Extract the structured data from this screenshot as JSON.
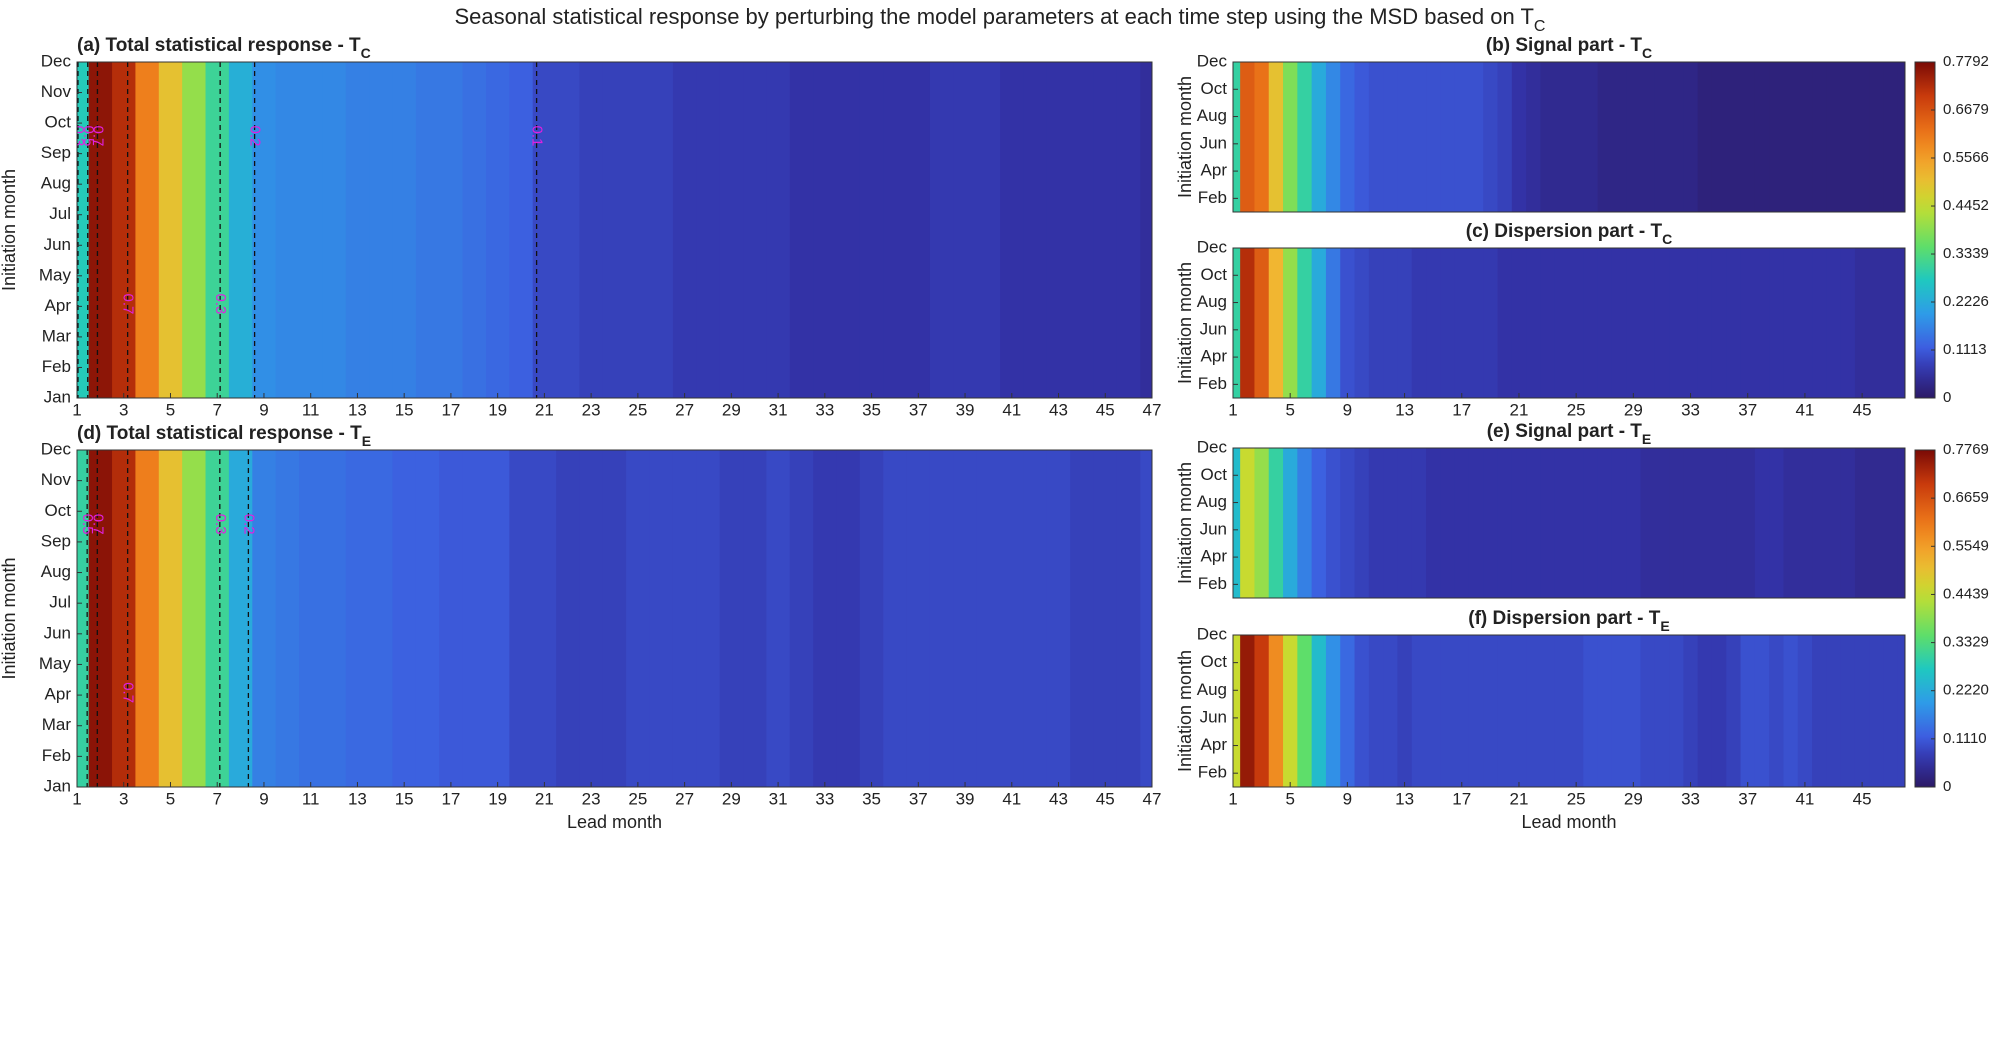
{
  "title": "Seasonal statistical response by perturbing the model parameters at each time step using the MSD based on T",
  "title_sub": "C",
  "chart_data": [
    {
      "type": "heatmap",
      "title": "(a) Total statistical response - T",
      "title_sub": "C",
      "ylabel": "Initiation month",
      "categories": [
        "Jan",
        "Feb",
        "Mar",
        "Apr",
        "May",
        "Jun",
        "Jul",
        "Aug",
        "Sep",
        "Oct",
        "Nov",
        "Dec"
      ],
      "x": [
        1,
        2,
        3,
        4,
        5,
        6,
        7,
        8,
        9,
        10,
        11,
        12,
        13,
        14,
        15,
        16,
        17,
        18,
        19,
        20,
        21,
        22,
        23,
        24,
        25,
        26,
        27,
        28,
        29,
        30,
        31,
        32,
        33,
        34,
        35,
        36,
        37,
        38,
        39,
        40,
        41,
        42,
        43,
        44,
        45,
        46,
        47
      ],
      "xlim": [
        1,
        47
      ],
      "xticks": [
        1,
        3,
        5,
        7,
        9,
        11,
        13,
        15,
        17,
        19,
        21,
        23,
        25,
        27,
        29,
        31,
        33,
        35,
        37,
        39,
        41,
        43,
        45,
        47
      ],
      "values": [
        0.28,
        0.76,
        0.72,
        0.6,
        0.5,
        0.4,
        0.31,
        0.23,
        0.18,
        0.17,
        0.17,
        0.17,
        0.16,
        0.16,
        0.16,
        0.15,
        0.15,
        0.14,
        0.13,
        0.12,
        0.09,
        0.09,
        0.08,
        0.08,
        0.08,
        0.08,
        0.07,
        0.07,
        0.07,
        0.07,
        0.07,
        0.06,
        0.06,
        0.06,
        0.06,
        0.06,
        0.06,
        0.07,
        0.07,
        0.07,
        0.06,
        0.06,
        0.06,
        0.06,
        0.06,
        0.06,
        0.05
      ],
      "clim": [
        0,
        0.7792
      ],
      "contours": [
        0.7,
        0.5,
        0.3,
        0.2,
        0.1
      ]
    },
    {
      "type": "heatmap",
      "title": "(b) Signal part - T",
      "title_sub": "C",
      "ylabel": "Initiation month",
      "categories": [
        null,
        "Feb",
        null,
        "Apr",
        null,
        "Jun",
        null,
        "Aug",
        null,
        "Oct",
        null,
        "Dec"
      ],
      "x": [
        1,
        2,
        3,
        4,
        5,
        6,
        7,
        8,
        9,
        10,
        11,
        12,
        13,
        14,
        15,
        16,
        17,
        18,
        19,
        20,
        21,
        22,
        23,
        24,
        25,
        26,
        27,
        28,
        29,
        30,
        31,
        32,
        33,
        34,
        35,
        36,
        37,
        38,
        39,
        40,
        41,
        42,
        43,
        44,
        45,
        46,
        47,
        48
      ],
      "xlim": [
        1,
        48
      ],
      "values": [
        0.3,
        0.65,
        0.62,
        0.5,
        0.38,
        0.3,
        0.22,
        0.17,
        0.13,
        0.11,
        0.1,
        0.1,
        0.1,
        0.1,
        0.1,
        0.1,
        0.1,
        0.1,
        0.09,
        0.08,
        0.06,
        0.05,
        0.04,
        0.04,
        0.04,
        0.04,
        0.03,
        0.03,
        0.03,
        0.03,
        0.03,
        0.03,
        0.03,
        0.02,
        0.02,
        0.02,
        0.02,
        0.02,
        0.02,
        0.02,
        0.02,
        0.02,
        0.02,
        0.02,
        0.02,
        0.02,
        0.02,
        0.02
      ],
      "clim": [
        0,
        0.7792
      ],
      "colorbar_ticks": [
        0,
        0.1113,
        0.2226,
        0.3339,
        0.4452,
        0.5566,
        0.6679,
        0.7792
      ]
    },
    {
      "type": "heatmap",
      "title": "(c) Dispersion part - T",
      "title_sub": "C",
      "ylabel": "Initiation month",
      "categories": [
        null,
        "Feb",
        null,
        "Apr",
        null,
        "Jun",
        null,
        "Aug",
        null,
        "Oct",
        null,
        "Dec"
      ],
      "x": [
        1,
        2,
        3,
        4,
        5,
        6,
        7,
        8,
        9,
        10,
        11,
        12,
        13,
        14,
        15,
        16,
        17,
        18,
        19,
        20,
        21,
        22,
        23,
        24,
        25,
        26,
        27,
        28,
        29,
        30,
        31,
        32,
        33,
        34,
        35,
        36,
        37,
        38,
        39,
        40,
        41,
        42,
        43,
        44,
        45,
        46,
        47,
        48
      ],
      "xlim": [
        1,
        48
      ],
      "xticks": [
        1,
        5,
        9,
        13,
        17,
        21,
        25,
        29,
        33,
        37,
        41,
        45
      ],
      "values": [
        0.3,
        0.72,
        0.65,
        0.52,
        0.4,
        0.3,
        0.22,
        0.15,
        0.1,
        0.09,
        0.08,
        0.08,
        0.08,
        0.07,
        0.07,
        0.07,
        0.07,
        0.07,
        0.07,
        0.06,
        0.06,
        0.06,
        0.06,
        0.06,
        0.06,
        0.06,
        0.06,
        0.06,
        0.06,
        0.06,
        0.06,
        0.06,
        0.06,
        0.06,
        0.06,
        0.06,
        0.06,
        0.06,
        0.06,
        0.06,
        0.06,
        0.06,
        0.06,
        0.06,
        0.05,
        0.05,
        0.05,
        0.05
      ],
      "clim": [
        0,
        0.7792
      ]
    },
    {
      "type": "heatmap",
      "title": "(d) Total statistical response - T",
      "title_sub": "E",
      "ylabel": "Initiation month",
      "xlabel": "Lead month",
      "categories": [
        "Jan",
        "Feb",
        "Mar",
        "Apr",
        "May",
        "Jun",
        "Jul",
        "Aug",
        "Sep",
        "Oct",
        "Nov",
        "Dec"
      ],
      "x": [
        1,
        2,
        3,
        4,
        5,
        6,
        7,
        8,
        9,
        10,
        11,
        12,
        13,
        14,
        15,
        16,
        17,
        18,
        19,
        20,
        21,
        22,
        23,
        24,
        25,
        26,
        27,
        28,
        29,
        30,
        31,
        32,
        33,
        34,
        35,
        36,
        37,
        38,
        39,
        40,
        41,
        42,
        43,
        44,
        45,
        46,
        47
      ],
      "xlim": [
        1,
        47
      ],
      "xticks": [
        1,
        3,
        5,
        7,
        9,
        11,
        13,
        15,
        17,
        19,
        21,
        23,
        25,
        27,
        29,
        31,
        33,
        35,
        37,
        39,
        41,
        43,
        45,
        47
      ],
      "values": [
        0.3,
        0.76,
        0.72,
        0.6,
        0.5,
        0.4,
        0.31,
        0.22,
        0.16,
        0.15,
        0.14,
        0.14,
        0.13,
        0.13,
        0.12,
        0.12,
        0.11,
        0.11,
        0.11,
        0.09,
        0.09,
        0.08,
        0.08,
        0.08,
        0.09,
        0.09,
        0.09,
        0.09,
        0.08,
        0.08,
        0.09,
        0.08,
        0.07,
        0.07,
        0.08,
        0.09,
        0.09,
        0.09,
        0.09,
        0.09,
        0.09,
        0.09,
        0.09,
        0.08,
        0.08,
        0.08,
        0.09
      ],
      "clim": [
        0,
        0.7769
      ],
      "contours": [
        0.7,
        0.5,
        0.3,
        0.2
      ]
    },
    {
      "type": "heatmap",
      "title": "(e) Signal part - T",
      "title_sub": "E",
      "ylabel": "Initiation month",
      "categories": [
        null,
        "Feb",
        null,
        "Apr",
        null,
        "Jun",
        null,
        "Aug",
        null,
        "Oct",
        null,
        "Dec"
      ],
      "x": [
        1,
        2,
        3,
        4,
        5,
        6,
        7,
        8,
        9,
        10,
        11,
        12,
        13,
        14,
        15,
        16,
        17,
        18,
        19,
        20,
        21,
        22,
        23,
        24,
        25,
        26,
        27,
        28,
        29,
        30,
        31,
        32,
        33,
        34,
        35,
        36,
        37,
        38,
        39,
        40,
        41,
        42,
        43,
        44,
        45,
        46,
        47,
        48
      ],
      "xlim": [
        1,
        48
      ],
      "values": [
        0.25,
        0.45,
        0.4,
        0.3,
        0.22,
        0.16,
        0.12,
        0.1,
        0.09,
        0.08,
        0.07,
        0.07,
        0.07,
        0.07,
        0.06,
        0.06,
        0.06,
        0.06,
        0.06,
        0.06,
        0.06,
        0.06,
        0.06,
        0.06,
        0.06,
        0.06,
        0.06,
        0.06,
        0.06,
        0.05,
        0.05,
        0.05,
        0.05,
        0.05,
        0.05,
        0.05,
        0.05,
        0.06,
        0.06,
        0.05,
        0.05,
        0.05,
        0.05,
        0.05,
        0.04,
        0.04,
        0.04,
        0.04
      ],
      "clim": [
        0,
        0.7769
      ],
      "colorbar_ticks": [
        0,
        {
          "value": 0.111,
          "label": "0.1110"
        },
        {
          "value": 0.222,
          "label": "0.2220"
        },
        0.3329,
        0.4439,
        0.5549,
        0.6659,
        0.7769
      ]
    },
    {
      "type": "heatmap",
      "title": "(f) Dispersion part - T",
      "title_sub": "E",
      "ylabel": "Initiation month",
      "xlabel": "Lead month",
      "categories": [
        null,
        "Feb",
        null,
        "Apr",
        null,
        "Jun",
        null,
        "Aug",
        null,
        "Oct",
        null,
        "Dec"
      ],
      "x": [
        1,
        2,
        3,
        4,
        5,
        6,
        7,
        8,
        9,
        10,
        11,
        12,
        13,
        14,
        15,
        16,
        17,
        18,
        19,
        20,
        21,
        22,
        23,
        24,
        25,
        26,
        27,
        28,
        29,
        30,
        31,
        32,
        33,
        34,
        35,
        36,
        37,
        38,
        39,
        40,
        41,
        42,
        43,
        44,
        45,
        46,
        47,
        48
      ],
      "xlim": [
        1,
        48
      ],
      "xticks": [
        1,
        5,
        9,
        13,
        17,
        21,
        25,
        29,
        33,
        37,
        41,
        45
      ],
      "values": [
        0.45,
        0.75,
        0.7,
        0.58,
        0.45,
        0.35,
        0.25,
        0.18,
        0.13,
        0.1,
        0.09,
        0.09,
        0.08,
        0.09,
        0.09,
        0.09,
        0.09,
        0.09,
        0.09,
        0.09,
        0.09,
        0.09,
        0.09,
        0.09,
        0.09,
        0.1,
        0.1,
        0.1,
        0.1,
        0.09,
        0.09,
        0.09,
        0.08,
        0.07,
        0.07,
        0.08,
        0.1,
        0.1,
        0.09,
        0.1,
        0.09,
        0.08,
        0.08,
        0.08,
        0.08,
        0.08,
        0.08,
        0.08
      ],
      "clim": [
        0,
        0.7769
      ]
    }
  ]
}
